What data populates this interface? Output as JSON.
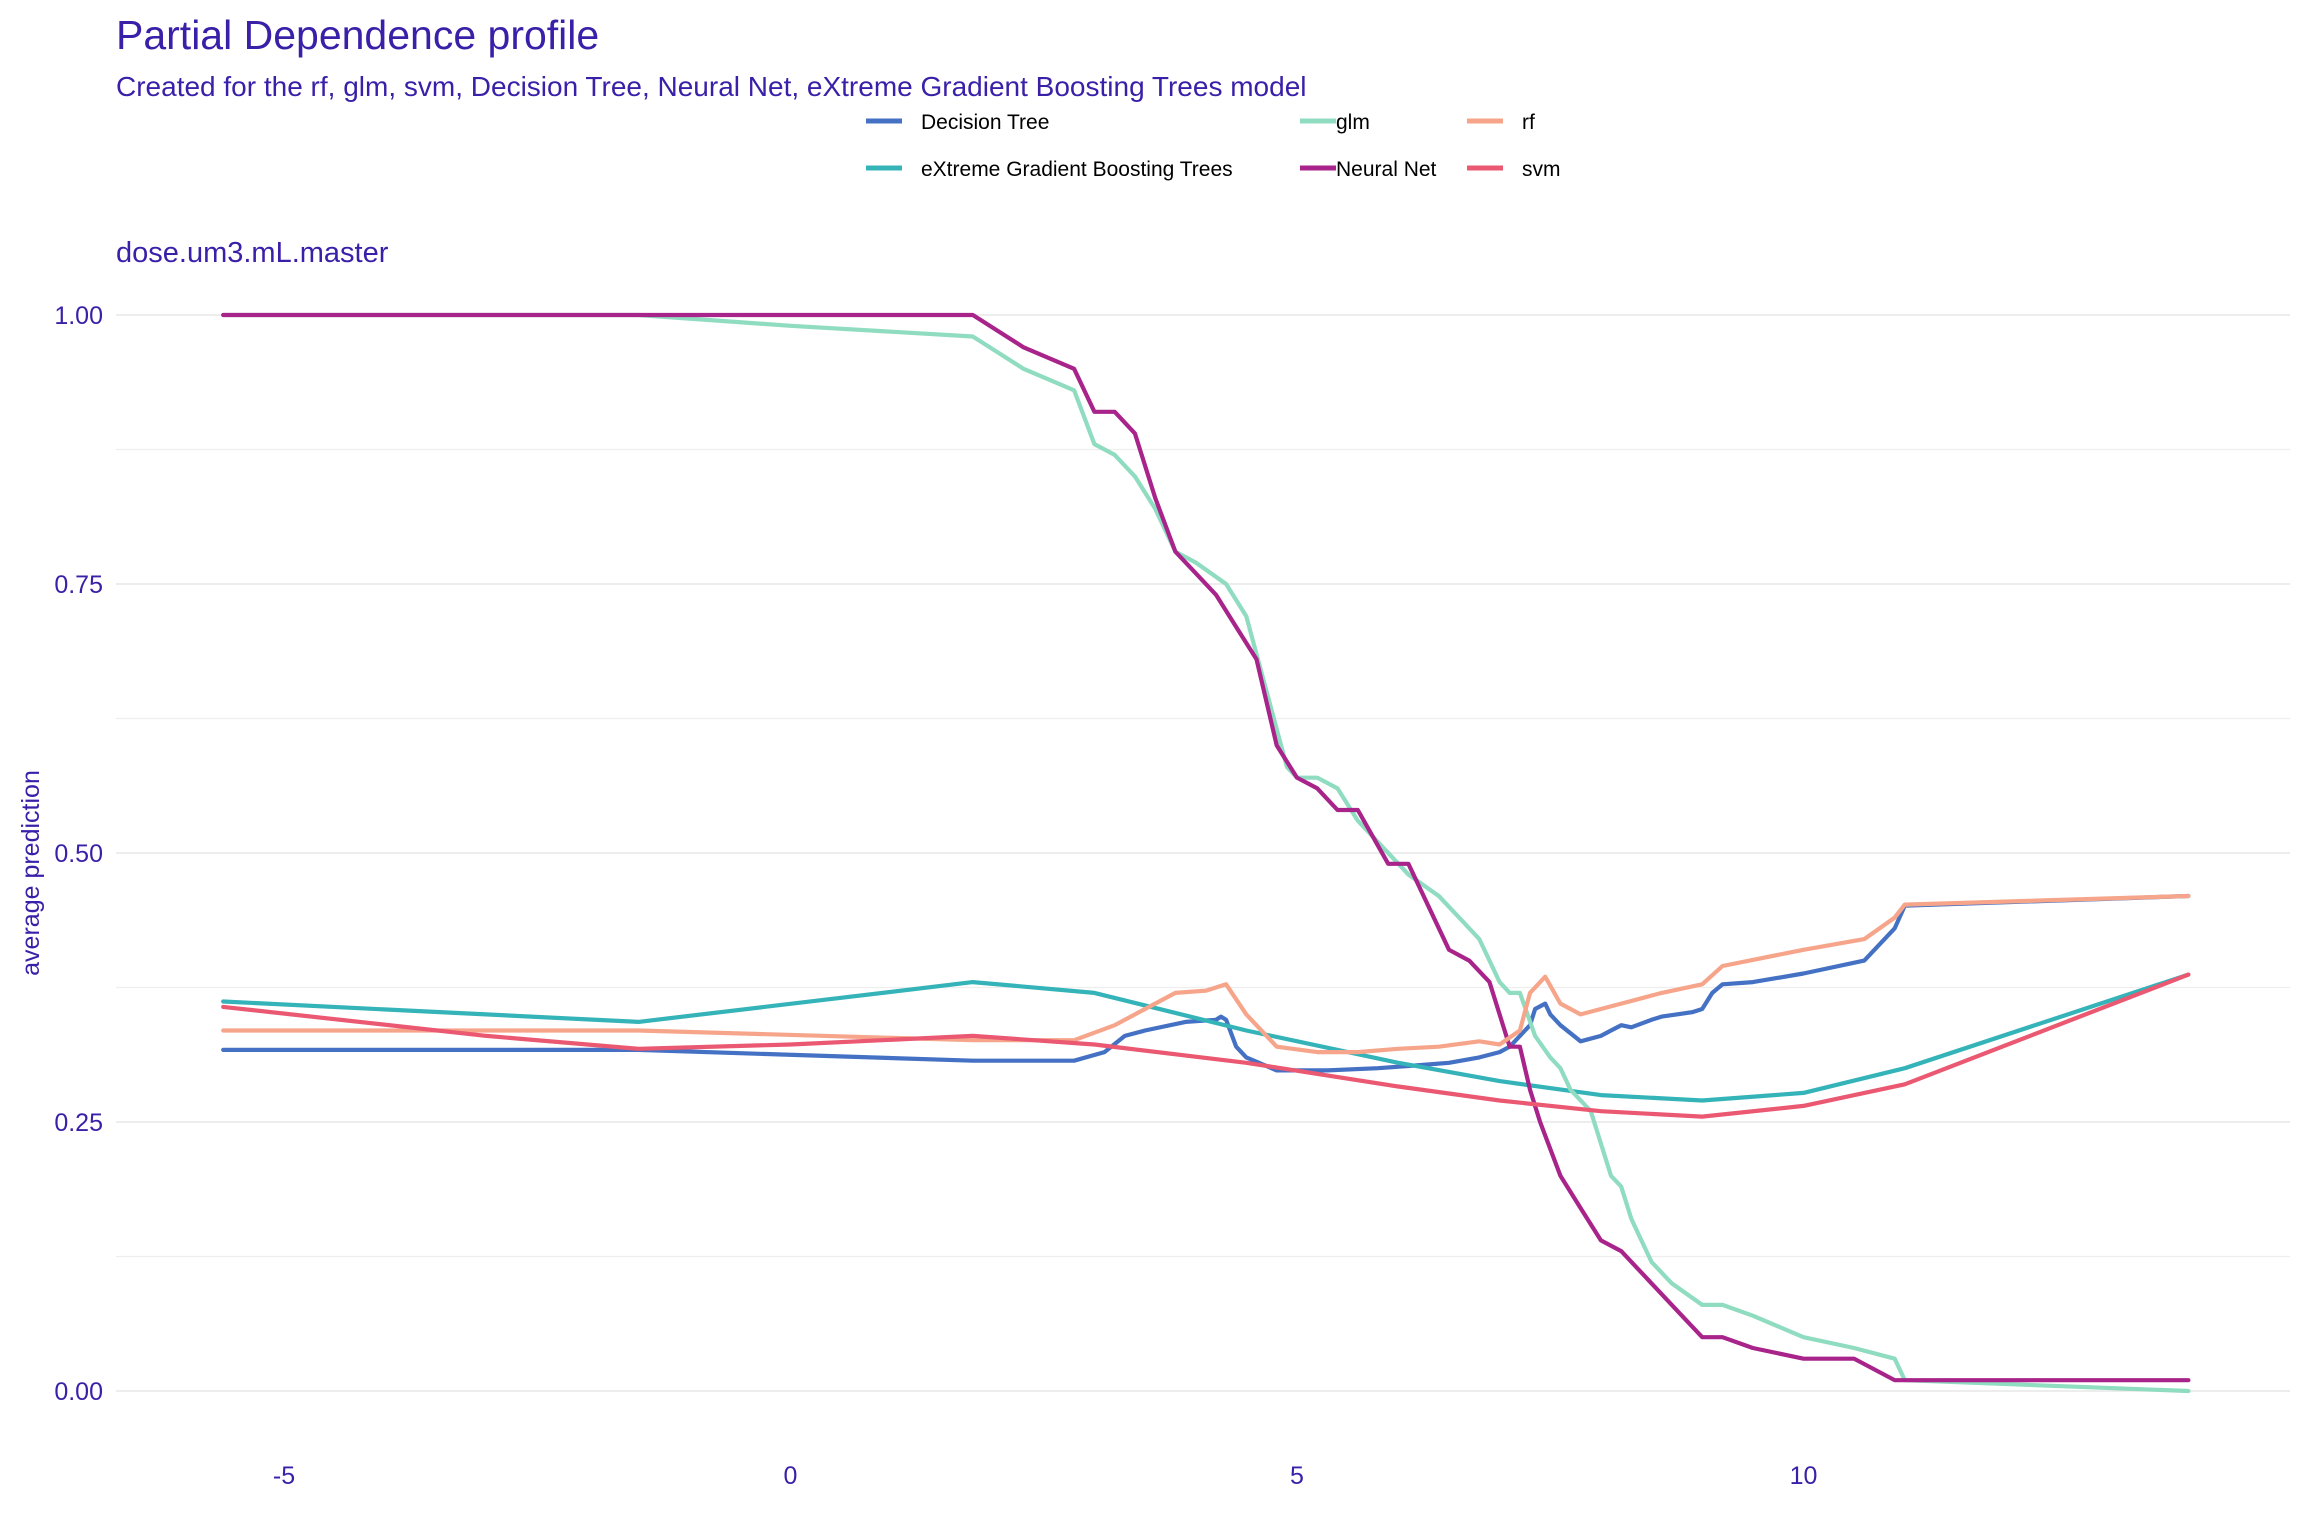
{
  "chart_data": {
    "type": "line",
    "title": "Partial Dependence profile",
    "subtitle": "Created for the rf, glm, svm, Decision Tree, Neural Net, eXtreme Gradient Boosting Trees model",
    "panel_label": "dose.um3.mL.master",
    "xlabel": "",
    "ylabel": "average prediction",
    "xlim": [
      -6.3,
      14.5
    ],
    "ylim": [
      -0.02,
      1.02
    ],
    "x_ticks": [
      -5,
      0,
      5,
      10
    ],
    "x_tick_labels": [
      "-5",
      "0",
      "5",
      "10"
    ],
    "y_ticks": [
      0,
      0.25,
      0.5,
      0.75,
      1
    ],
    "y_tick_labels": [
      "0.00",
      "0.25",
      "0.50",
      "0.75",
      "1.00"
    ],
    "grid": true,
    "legend_position": "top",
    "series": [
      {
        "name": "Decision Tree",
        "color": "#4471c4",
        "x": [
          -5.6,
          -1.5,
          1.8,
          2.8,
          3.1,
          3.3,
          3.5,
          3.9,
          4.2,
          4.25,
          4.3,
          4.4,
          4.5,
          4.8,
          5.3,
          5.8,
          6.1,
          6.5,
          6.8,
          7.0,
          7.1,
          7.2,
          7.3,
          7.35,
          7.45,
          7.5,
          7.6,
          7.8,
          8.0,
          8.1,
          8.2,
          8.3,
          8.5,
          8.6,
          8.9,
          9.0,
          9.1,
          9.2,
          9.5,
          10.0,
          10.6,
          10.9,
          11.0,
          13.8
        ],
        "y": [
          0.317,
          0.317,
          0.307,
          0.307,
          0.315,
          0.33,
          0.335,
          0.343,
          0.345,
          0.348,
          0.345,
          0.32,
          0.31,
          0.298,
          0.298,
          0.3,
          0.302,
          0.305,
          0.31,
          0.315,
          0.32,
          0.33,
          0.34,
          0.355,
          0.36,
          0.35,
          0.34,
          0.325,
          0.33,
          0.335,
          0.34,
          0.338,
          0.345,
          0.348,
          0.352,
          0.355,
          0.37,
          0.378,
          0.38,
          0.388,
          0.4,
          0.43,
          0.451,
          0.46
        ]
      },
      {
        "name": "eXtreme Gradient Boosting Trees",
        "color": "#34b3b8",
        "x": [
          -5.6,
          -1.5,
          1.8,
          3.0,
          4.5,
          6.0,
          7.0,
          8.0,
          9.0,
          10.0,
          11.0,
          13.8
        ],
        "y": [
          0.362,
          0.343,
          0.38,
          0.37,
          0.335,
          0.305,
          0.288,
          0.275,
          0.27,
          0.277,
          0.3,
          0.387
        ]
      },
      {
        "name": "glm",
        "color": "#8fdcc1",
        "x": [
          -5.6,
          -1.5,
          0.0,
          1.8,
          2.3,
          2.8,
          3.0,
          3.2,
          3.4,
          3.6,
          3.8,
          4.0,
          4.3,
          4.5,
          4.7,
          4.9,
          5.0,
          5.2,
          5.4,
          5.6,
          5.9,
          6.1,
          6.4,
          6.6,
          6.8,
          6.9,
          7.0,
          7.1,
          7.2,
          7.35,
          7.5,
          7.6,
          7.7,
          7.9,
          8.0,
          8.1,
          8.2,
          8.3,
          8.4,
          8.5,
          8.7,
          9.0,
          9.2,
          9.5,
          10.0,
          10.5,
          10.9,
          11.0,
          13.8
        ],
        "y": [
          1.0,
          1.0,
          0.99,
          0.98,
          0.95,
          0.93,
          0.88,
          0.87,
          0.85,
          0.82,
          0.78,
          0.77,
          0.75,
          0.72,
          0.65,
          0.58,
          0.57,
          0.57,
          0.56,
          0.53,
          0.5,
          0.48,
          0.46,
          0.44,
          0.42,
          0.4,
          0.38,
          0.37,
          0.37,
          0.33,
          0.31,
          0.3,
          0.28,
          0.26,
          0.23,
          0.2,
          0.19,
          0.16,
          0.14,
          0.12,
          0.1,
          0.08,
          0.08,
          0.07,
          0.05,
          0.04,
          0.03,
          0.01,
          0.0
        ]
      },
      {
        "name": "Neural Net",
        "color": "#a8238a",
        "x": [
          -5.6,
          -1.5,
          1.8,
          2.3,
          2.8,
          3.0,
          3.2,
          3.4,
          3.6,
          3.8,
          4.0,
          4.2,
          4.4,
          4.6,
          4.8,
          5.0,
          5.2,
          5.4,
          5.6,
          5.9,
          6.1,
          6.3,
          6.5,
          6.7,
          6.9,
          7.0,
          7.1,
          7.2,
          7.3,
          7.4,
          7.6,
          7.8,
          8.0,
          8.2,
          8.4,
          8.6,
          8.8,
          9.0,
          9.2,
          9.5,
          10.0,
          10.5,
          10.9,
          13.8
        ],
        "y": [
          1.0,
          1.0,
          1.0,
          0.97,
          0.95,
          0.91,
          0.91,
          0.89,
          0.83,
          0.78,
          0.76,
          0.74,
          0.71,
          0.68,
          0.6,
          0.57,
          0.56,
          0.54,
          0.54,
          0.49,
          0.49,
          0.45,
          0.41,
          0.4,
          0.38,
          0.35,
          0.32,
          0.32,
          0.28,
          0.25,
          0.2,
          0.17,
          0.14,
          0.13,
          0.11,
          0.09,
          0.07,
          0.05,
          0.05,
          0.04,
          0.03,
          0.03,
          0.01,
          0.01
        ]
      },
      {
        "name": "rf",
        "color": "#f6a58a",
        "x": [
          -5.6,
          -1.5,
          1.8,
          2.8,
          3.2,
          3.5,
          3.8,
          4.1,
          4.3,
          4.5,
          4.8,
          5.2,
          5.6,
          6.0,
          6.4,
          6.8,
          7.0,
          7.2,
          7.3,
          7.45,
          7.6,
          7.8,
          8.0,
          8.2,
          8.4,
          8.6,
          9.0,
          9.2,
          10.0,
          10.6,
          10.9,
          11.0,
          13.8
        ],
        "y": [
          0.335,
          0.335,
          0.326,
          0.326,
          0.34,
          0.355,
          0.37,
          0.372,
          0.378,
          0.35,
          0.32,
          0.315,
          0.315,
          0.318,
          0.32,
          0.325,
          0.322,
          0.335,
          0.37,
          0.385,
          0.36,
          0.35,
          0.355,
          0.36,
          0.365,
          0.37,
          0.378,
          0.395,
          0.41,
          0.42,
          0.44,
          0.452,
          0.46
        ]
      },
      {
        "name": "svm",
        "color": "#ea5871",
        "x": [
          -5.6,
          -3.0,
          -1.5,
          0.0,
          1.8,
          3.0,
          4.5,
          6.0,
          7.0,
          8.0,
          9.0,
          10.0,
          11.0,
          13.8
        ],
        "y": [
          0.357,
          0.33,
          0.318,
          0.322,
          0.33,
          0.322,
          0.305,
          0.283,
          0.27,
          0.26,
          0.255,
          0.265,
          0.285,
          0.387
        ]
      }
    ]
  },
  "legend": {
    "items": [
      {
        "label": "Decision Tree",
        "color": "#4471c4"
      },
      {
        "label": "eXtreme Gradient Boosting Trees",
        "color": "#34b3b8"
      },
      {
        "label": "glm",
        "color": "#8fdcc1"
      },
      {
        "label": "Neural Net",
        "color": "#a8238a"
      },
      {
        "label": "rf",
        "color": "#f6a58a"
      },
      {
        "label": "svm",
        "color": "#ea5871"
      }
    ]
  }
}
